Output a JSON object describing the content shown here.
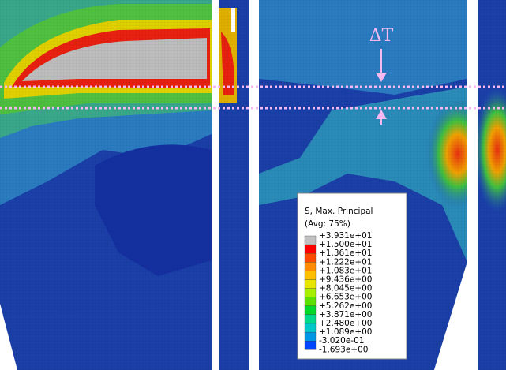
{
  "annotation": "ΔT",
  "legend": {
    "title": "S, Max. Principal",
    "subtitle": "(Avg: 75%)",
    "labels": [
      "+3.931e+01",
      "+1.500e+01",
      "+1.361e+01",
      "+1.222e+01",
      "+1.083e+01",
      "+9.436e+00",
      "+8.045e+00",
      "+6.653e+00",
      "+5.262e+00",
      "+3.871e+00",
      "+2.480e+00",
      "+1.089e+00",
      "-3.020e-01",
      "-1.693e+00"
    ],
    "colors": [
      "#c0c0c0",
      "#ff0000",
      "#ff4a00",
      "#ff8c00",
      "#ffbf00",
      "#e6e600",
      "#a6ef00",
      "#5ce000",
      "#00d82a",
      "#00d88c",
      "#00c8c8",
      "#0096e6",
      "#0046ff"
    ]
  }
}
